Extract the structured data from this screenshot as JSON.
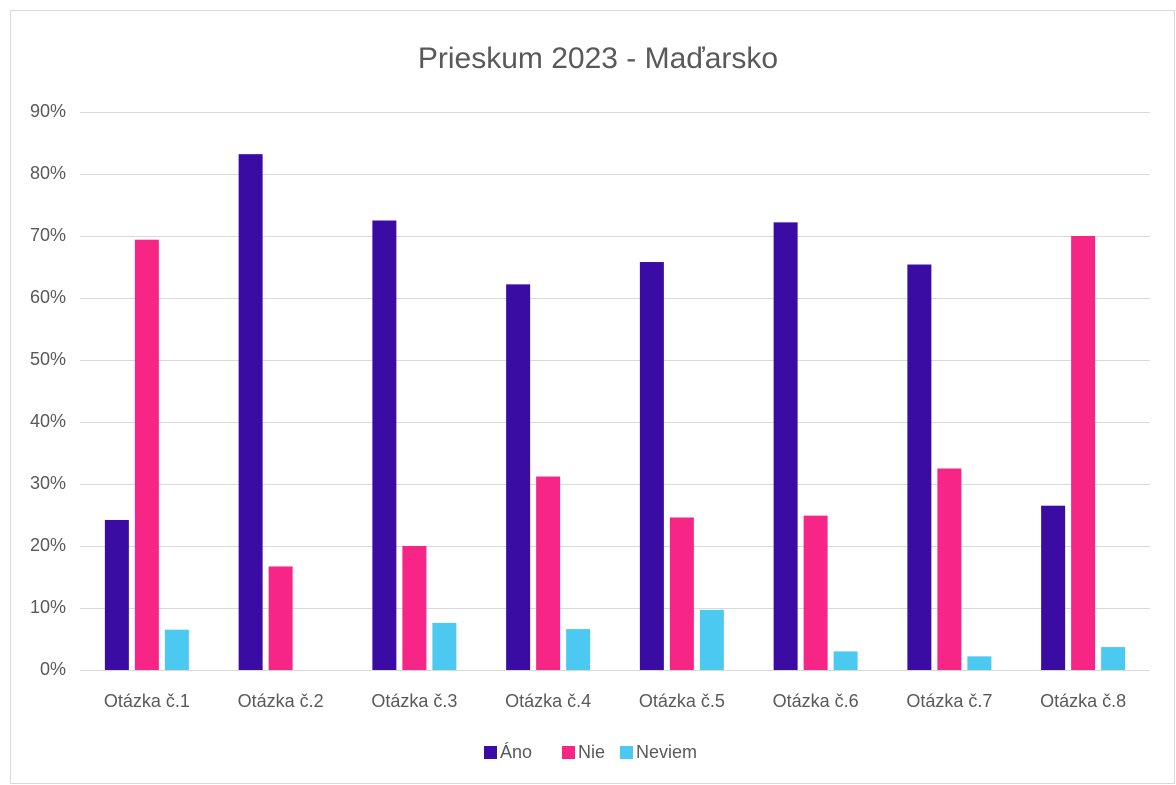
{
  "chart_data": {
    "type": "bar",
    "title": "Prieskum 2023 - Maďarsko",
    "categories": [
      "Otázka č.1",
      "Otázka č.2",
      "Otázka č.3",
      "Otázka č.4",
      "Otázka č.5",
      "Otázka č.6",
      "Otázka č.7",
      "Otázka č.8"
    ],
    "series": [
      {
        "name": "Áno",
        "color": "#3a0ca3",
        "values": [
          24.2,
          83.2,
          72.5,
          62.2,
          65.8,
          72.2,
          65.4,
          26.5
        ]
      },
      {
        "name": "Nie",
        "color": "#f72585",
        "values": [
          69.4,
          16.7,
          20,
          31.2,
          24.6,
          24.9,
          32.5,
          70
        ]
      },
      {
        "name": "Neviem",
        "color": "#4cc9f0",
        "values": [
          6.5,
          0,
          7.6,
          6.6,
          9.7,
          3,
          2.2,
          3.7
        ]
      }
    ],
    "ylim": [
      0,
      90
    ],
    "yticks": [
      {
        "value": 0,
        "label": "0%"
      },
      {
        "value": 10,
        "label": "10%"
      },
      {
        "value": 20,
        "label": "20%"
      },
      {
        "value": 30,
        "label": "30%"
      },
      {
        "value": 40,
        "label": "40%"
      },
      {
        "value": 50,
        "label": "50%"
      },
      {
        "value": 60,
        "label": "60%"
      },
      {
        "value": 70,
        "label": "70%"
      },
      {
        "value": 80,
        "label": "80%"
      },
      {
        "value": 90,
        "label": "90%"
      }
    ],
    "grid": true,
    "legend": "bottom"
  }
}
